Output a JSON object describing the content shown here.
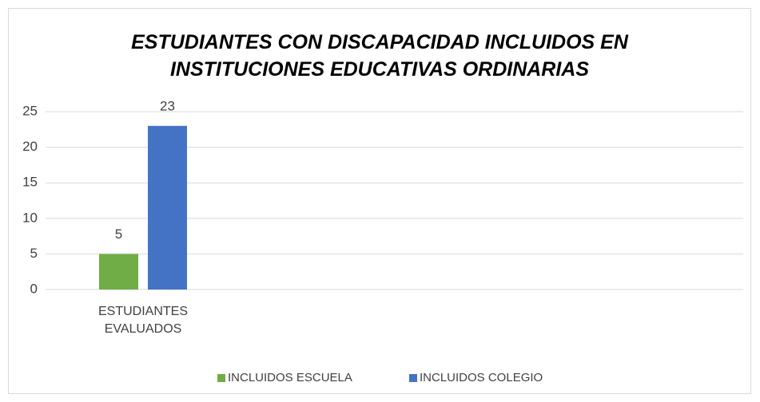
{
  "chart_data": {
    "type": "bar",
    "title": "ESTUDIANTES CON DISCAPACIDAD INCLUIDOS EN INSTITUCIONES EDUCATIVAS ORDINARIAS",
    "categories": [
      "ESTUDIANTES EVALUADOS"
    ],
    "series": [
      {
        "name": "INCLUIDOS ESCUELA",
        "color": "#70ad47",
        "values": [
          5
        ]
      },
      {
        "name": "INCLUIDOS COLEGIO",
        "color": "#4472c4",
        "values": [
          23
        ]
      }
    ],
    "ylim": [
      0,
      25
    ],
    "yticks": [
      0,
      5,
      10,
      15,
      20,
      25
    ],
    "grid": true,
    "legend": "bottom",
    "data_labels": true
  }
}
